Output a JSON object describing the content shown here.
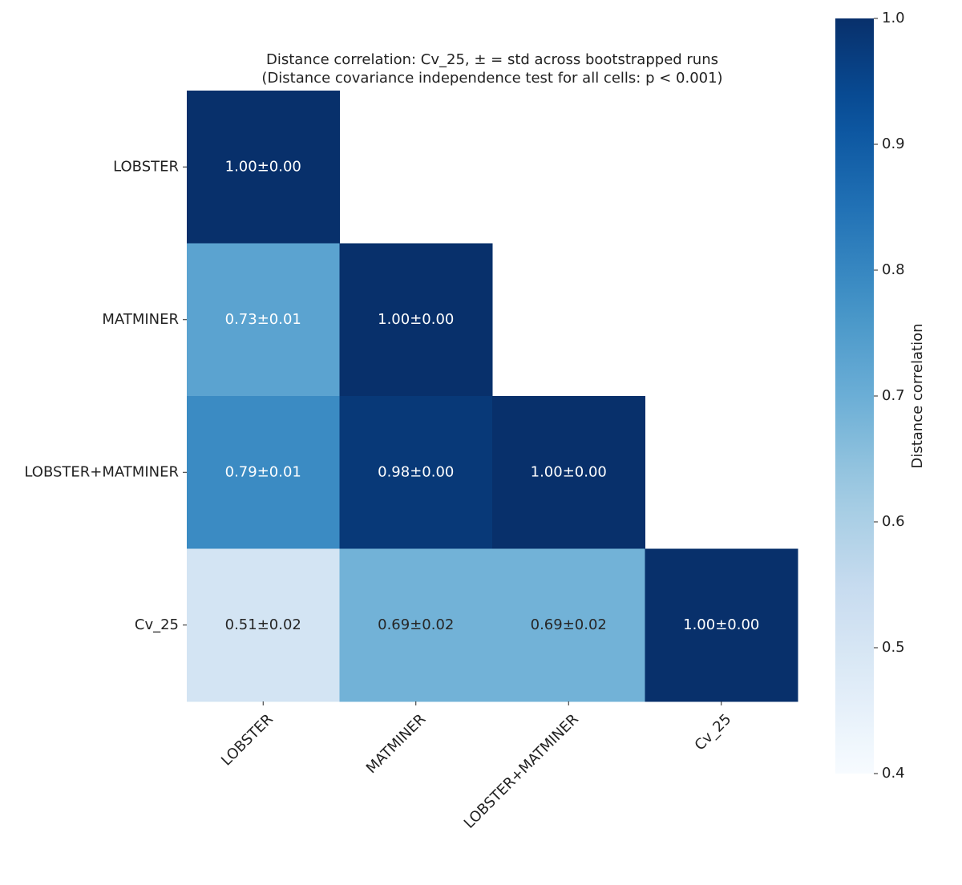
{
  "chart_data": {
    "type": "heatmap",
    "title": "Distance correlation: Cv_25, ± = std across bootstrapped runs",
    "subtitle": "(Distance covariance independence test for all cells: p < 0.001)",
    "rows": [
      "LOBSTER",
      "MATMINER",
      "LOBSTER+MATMINER",
      "Cv_25"
    ],
    "columns": [
      "LOBSTER",
      "MATMINER",
      "LOBSTER+MATMINER",
      "Cv_25"
    ],
    "values": [
      [
        1.0,
        null,
        null,
        null
      ],
      [
        0.73,
        1.0,
        null,
        null
      ],
      [
        0.79,
        0.98,
        1.0,
        null
      ],
      [
        0.51,
        0.69,
        0.69,
        1.0
      ]
    ],
    "value_labels": [
      [
        "1.00±0.00",
        null,
        null,
        null
      ],
      [
        "0.73±0.01",
        "1.00±0.00",
        null,
        null
      ],
      [
        "0.79±0.01",
        "0.98±0.00",
        "1.00±0.00",
        null
      ],
      [
        "0.51±0.02",
        "0.69±0.02",
        "0.69±0.02",
        "1.00±0.00"
      ]
    ],
    "colormap": "Blues",
    "clim": [
      0.4,
      1.0
    ],
    "cticks": [
      0.4,
      0.5,
      0.6,
      0.7,
      0.8,
      0.9,
      {
        "value": 1.0,
        "label": "1.0"
      }
    ],
    "colorbar_label": "Distance correlation"
  }
}
